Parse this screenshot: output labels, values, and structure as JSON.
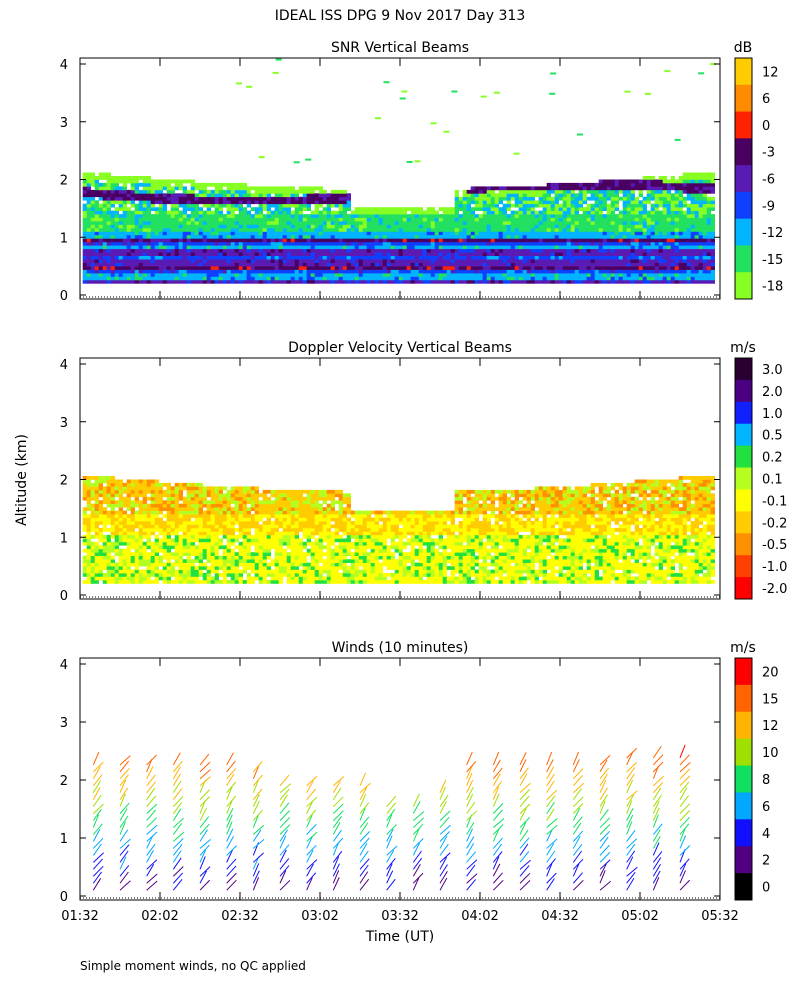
{
  "figure": {
    "title": "IDEAL ISS DPG   9 Nov 2017 Day 313",
    "y_axis_label": "Altitude (km)",
    "x_axis_label": "Time (UT)",
    "footnote": "Simple moment winds, no QC applied"
  },
  "chart_data": [
    {
      "id": "snr",
      "type": "heatmap",
      "title": "SNR Vertical Beams",
      "ylim": [
        0,
        4
      ],
      "y_ticks": [
        "0",
        "1",
        "2",
        "3",
        "4"
      ],
      "x_ticks": [
        "01:32",
        "02:02",
        "02:32",
        "03:02",
        "03:32",
        "04:02",
        "04:32",
        "05:02",
        "05:32"
      ],
      "colorbar": {
        "unit": "dB",
        "labels": [
          "12",
          "6",
          "0",
          "-3",
          "-6",
          "-9",
          "-12",
          "-15",
          "-18"
        ],
        "colors": [
          "#ffcc00",
          "#ff8c00",
          "#ff2200",
          "#4a0060",
          "#5a1ab4",
          "#1040ff",
          "#00b4ff",
          "#22e060",
          "#88ff22"
        ]
      },
      "layers": [
        {
          "name": "dark band",
          "altitude_range": [
            1.65,
            1.8
          ],
          "color": "#4a0060"
        },
        {
          "name": "boundary layer",
          "altitude_range": [
            0.2,
            1.0
          ],
          "color": "#1040ff"
        }
      ]
    },
    {
      "id": "doppler",
      "type": "heatmap",
      "title": "Doppler Velocity Vertical Beams",
      "ylim": [
        0,
        4
      ],
      "y_ticks": [
        "0",
        "1",
        "2",
        "3",
        "4"
      ],
      "x_ticks": [
        "01:32",
        "02:02",
        "02:32",
        "03:02",
        "03:32",
        "04:02",
        "04:32",
        "05:02",
        "05:32"
      ],
      "colorbar": {
        "unit": "m/s",
        "labels": [
          "3.0",
          "2.0",
          "1.0",
          "0.5",
          "0.2",
          "0.1",
          "-0.1",
          "-0.2",
          "-0.5",
          "-1.0",
          "-2.0"
        ],
        "colors": [
          "#2a0030",
          "#4a0080",
          "#1020ff",
          "#00b4ff",
          "#22e040",
          "#b4ff20",
          "#ffff00",
          "#ffcc00",
          "#ff9000",
          "#ff4000",
          "#ff0000"
        ]
      }
    },
    {
      "id": "winds",
      "type": "scatter",
      "title": "Winds (10 minutes)",
      "ylim": [
        0,
        4
      ],
      "y_ticks": [
        "0",
        "1",
        "2",
        "3",
        "4"
      ],
      "x_ticks": [
        "01:32",
        "02:02",
        "02:32",
        "03:02",
        "03:32",
        "04:02",
        "04:32",
        "05:02",
        "05:32"
      ],
      "colorbar": {
        "unit": "m/s",
        "labels": [
          "20",
          "15",
          "12",
          "10",
          "8",
          "6",
          "4",
          "2",
          "0"
        ],
        "colors": [
          "#ff0000",
          "#ff6400",
          "#ffb400",
          "#a0e000",
          "#10e060",
          "#00a8ff",
          "#1010ff",
          "#500080",
          "#000000"
        ]
      },
      "barb_times": [
        "01:37",
        "01:47",
        "01:57",
        "02:07",
        "02:17",
        "02:27",
        "02:37",
        "02:47",
        "02:57",
        "03:07",
        "03:17",
        "03:27",
        "03:37",
        "03:47",
        "03:57",
        "04:07",
        "04:17",
        "04:27",
        "04:37",
        "04:47",
        "04:57",
        "05:07",
        "05:17"
      ],
      "profile_tops_km": [
        2.3,
        2.35,
        2.3,
        2.3,
        2.3,
        2.3,
        2.2,
        2.0,
        2.0,
        2.0,
        2.0,
        1.6,
        1.6,
        1.9,
        2.3,
        2.3,
        2.3,
        2.3,
        2.3,
        2.3,
        2.4,
        2.5,
        2.5
      ]
    }
  ]
}
